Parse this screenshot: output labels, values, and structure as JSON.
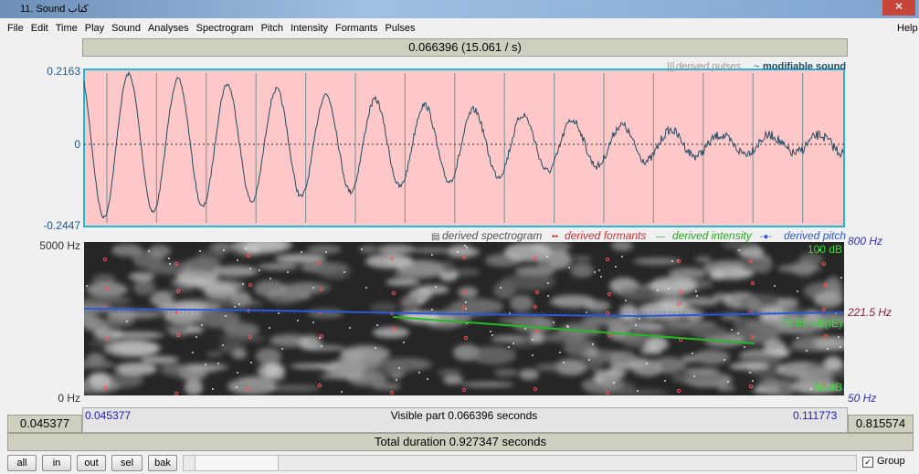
{
  "window": {
    "title": "11. Sound كتاب"
  },
  "menu": [
    "File",
    "Edit",
    "Time",
    "Play",
    "Sound",
    "Analyses",
    "Spectrogram",
    "Pitch",
    "Intensity",
    "Formants",
    "Pulses"
  ],
  "help": "Help",
  "top_bar": "0.066396 (15.061 / s)",
  "waveform": {
    "ymax": "0.2163",
    "zero": "0",
    "ymin": "-0.2447",
    "legend_pulses": "derived pulses",
    "legend_sound": "modifiable sound"
  },
  "spectrogram": {
    "legend": [
      "derived spectrogram",
      "derived formants",
      "derived intensity",
      "derived pitch"
    ],
    "fmax": "5000 Hz",
    "fmin": "0 Hz",
    "pitch_max": "800 Hz",
    "pitch_cursor": "221.5 Hz",
    "pitch_min": "50 Hz",
    "intensity_max": "100 dB",
    "intensity_cursor": "72.89 dB(IE)",
    "intensity_min": "50 dB"
  },
  "time": {
    "left_outer": "0.045377",
    "start": "0.045377",
    "visible": "Visible part 0.066396 seconds",
    "end": "0.111773",
    "right_outer": "0.815574",
    "total": "Total duration 0.927347 seconds"
  },
  "buttons": [
    "all",
    "in",
    "out",
    "sel",
    "bak"
  ],
  "group": "Group"
}
